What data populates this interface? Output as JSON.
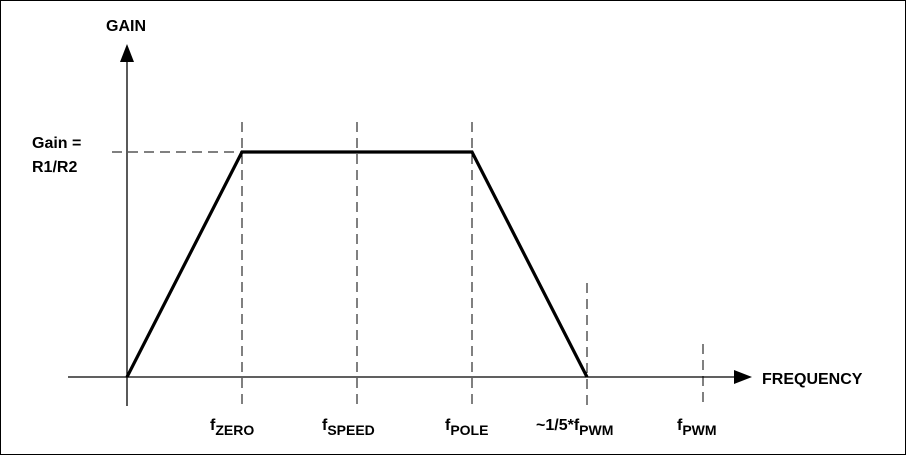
{
  "diagram": {
    "y_axis_label": "GAIN",
    "x_axis_label": "FREQUENCY",
    "gain_label_line1": "Gain =",
    "gain_label_line2": "R1/R2",
    "markers": [
      {
        "prefix": "f",
        "sub": "ZERO"
      },
      {
        "prefix": "f",
        "sub": "SPEED"
      },
      {
        "prefix": "f",
        "sub": "POLE"
      },
      {
        "prefix": "~1/5*f",
        "sub": "PWM"
      },
      {
        "prefix": "f",
        "sub": "PWM"
      }
    ]
  },
  "colors": {
    "line": "#000000",
    "dashed": "#000000",
    "background": "#ffffff",
    "border": "#000000"
  }
}
